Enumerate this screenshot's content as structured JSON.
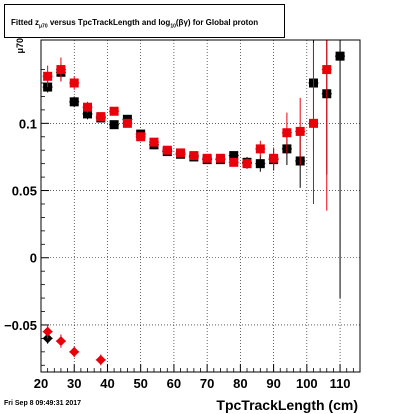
{
  "title": {
    "prefix": "Fitted ",
    "z": "z",
    "z_sub": "μ70",
    "middle": " versus TpcTrackLength and log",
    "log_sub": "10",
    "suffix": "(βγ) for Global proton"
  },
  "date_stamp": "Fri Sep  8 09:49:31 2017",
  "chart_data": {
    "type": "scatter",
    "title": "Fitted zμ70 versus TpcTrackLength and log10(βγ) for Global proton",
    "xlabel": "TpcTrackLength (cm)",
    "ylabel": "μ70",
    "xlim": [
      20,
      116
    ],
    "ylim": [
      -0.085,
      0.162
    ],
    "xticks": [
      20,
      30,
      40,
      50,
      60,
      70,
      80,
      90,
      100,
      110
    ],
    "yticks": [
      -0.05,
      0,
      0.05,
      0.1
    ],
    "ytick_labels": [
      "−0.05",
      "0",
      "0.05",
      "0.1"
    ],
    "grid": true,
    "series": [
      {
        "color": "#000000",
        "marker": "square",
        "points": [
          {
            "x": 22,
            "y": 0.127,
            "err": 0.004
          },
          {
            "x": 26,
            "y": 0.138,
            "err": 0.006
          },
          {
            "x": 30,
            "y": 0.116,
            "err": 0.004
          },
          {
            "x": 34,
            "y": 0.107,
            "err": 0.004
          },
          {
            "x": 38,
            "y": 0.104,
            "err": 0.003
          },
          {
            "x": 42,
            "y": 0.099,
            "err": 0.003
          },
          {
            "x": 46,
            "y": 0.103,
            "err": 0.003
          },
          {
            "x": 50,
            "y": 0.092,
            "err": 0.003
          },
          {
            "x": 54,
            "y": 0.084,
            "err": 0.003
          },
          {
            "x": 58,
            "y": 0.079,
            "err": 0.002
          },
          {
            "x": 62,
            "y": 0.077,
            "err": 0.002
          },
          {
            "x": 66,
            "y": 0.075,
            "err": 0.002
          },
          {
            "x": 70,
            "y": 0.073,
            "err": 0.003
          },
          {
            "x": 74,
            "y": 0.073,
            "err": 0.003
          },
          {
            "x": 78,
            "y": 0.076,
            "err": 0.003
          },
          {
            "x": 82,
            "y": 0.071,
            "err": 0.004
          },
          {
            "x": 86,
            "y": 0.07,
            "err": 0.006
          },
          {
            "x": 90,
            "y": 0.073,
            "err": 0.008
          },
          {
            "x": 94,
            "y": 0.081,
            "err": 0.012
          },
          {
            "x": 98,
            "y": 0.072,
            "err": 0.02
          },
          {
            "x": 102,
            "y": 0.13,
            "err": 0.05
          },
          {
            "x": 106,
            "y": 0.122,
            "err": 0.06
          },
          {
            "x": 110,
            "y": 0.15,
            "err": 0.18
          }
        ]
      },
      {
        "color": "#e8000b",
        "marker": "square",
        "points": [
          {
            "x": 22,
            "y": 0.135,
            "err": 0.008
          },
          {
            "x": 26,
            "y": 0.14,
            "err": 0.009
          },
          {
            "x": 30,
            "y": 0.13,
            "err": 0.005
          },
          {
            "x": 34,
            "y": 0.112,
            "err": 0.004
          },
          {
            "x": 38,
            "y": 0.105,
            "err": 0.003
          },
          {
            "x": 42,
            "y": 0.109,
            "err": 0.003
          },
          {
            "x": 46,
            "y": 0.1,
            "err": 0.003
          },
          {
            "x": 50,
            "y": 0.09,
            "err": 0.003
          },
          {
            "x": 54,
            "y": 0.086,
            "err": 0.003
          },
          {
            "x": 58,
            "y": 0.08,
            "err": 0.002
          },
          {
            "x": 62,
            "y": 0.078,
            "err": 0.002
          },
          {
            "x": 66,
            "y": 0.076,
            "err": 0.002
          },
          {
            "x": 70,
            "y": 0.074,
            "err": 0.003
          },
          {
            "x": 74,
            "y": 0.074,
            "err": 0.003
          },
          {
            "x": 78,
            "y": 0.071,
            "err": 0.003
          },
          {
            "x": 82,
            "y": 0.07,
            "err": 0.004
          },
          {
            "x": 86,
            "y": 0.081,
            "err": 0.006
          },
          {
            "x": 90,
            "y": 0.074,
            "err": 0.008
          },
          {
            "x": 94,
            "y": 0.093,
            "err": 0.015
          },
          {
            "x": 98,
            "y": 0.094,
            "err": 0.025
          },
          {
            "x": 102,
            "y": 0.1,
            "err": 0.06
          },
          {
            "x": 106,
            "y": 0.14,
            "err": 0.105
          }
        ]
      },
      {
        "color": "#000000",
        "marker": "diamond",
        "points": [
          {
            "x": 22,
            "y": -0.06,
            "err": 0.004
          }
        ]
      },
      {
        "color": "#e8000b",
        "marker": "diamond",
        "points": [
          {
            "x": 22,
            "y": -0.055,
            "err": 0.005
          },
          {
            "x": 26,
            "y": -0.062,
            "err": 0.005
          },
          {
            "x": 30,
            "y": -0.07,
            "err": 0.004
          },
          {
            "x": 38,
            "y": -0.076,
            "err": 0.004
          }
        ]
      }
    ]
  }
}
